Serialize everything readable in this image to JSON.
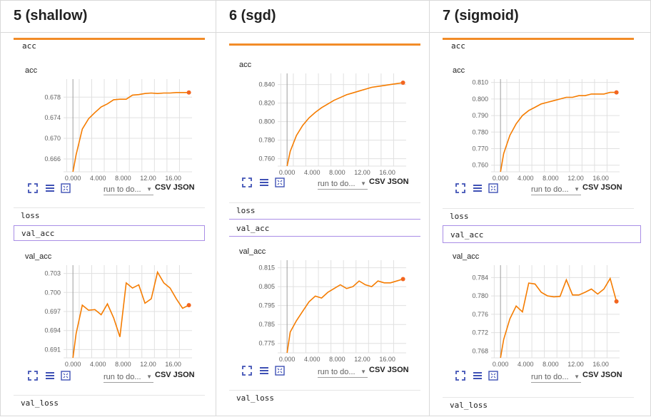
{
  "columns": [
    {
      "title": "5 (shallow)",
      "tags": [
        "acc",
        "loss",
        "val_acc",
        "val_loss"
      ],
      "acc": {
        "label": "acc",
        "y_ticks": [
          "0.678",
          "0.674",
          "0.670",
          "0.666"
        ],
        "x_ticks": [
          "0.000",
          "4.000",
          "8.000",
          "12.00",
          "16.00"
        ],
        "ylim": [
          0.6635,
          0.6815
        ],
        "xlim": [
          -1.5,
          19
        ],
        "x": [
          0,
          0.5,
          1.5,
          2.5,
          3.5,
          4.5,
          5.5,
          6.5,
          7.5,
          8.5,
          9.5,
          10.5,
          11.5,
          12.5,
          13.5,
          14.5,
          15.5,
          16.5,
          17.5,
          18.5
        ],
        "y": [
          0.6632,
          0.6668,
          0.6718,
          0.6738,
          0.675,
          0.6761,
          0.6767,
          0.6775,
          0.6776,
          0.6776,
          0.6784,
          0.6785,
          0.6787,
          0.6788,
          0.6787,
          0.6788,
          0.6788,
          0.6789,
          0.6789,
          0.6789
        ]
      },
      "val_acc": {
        "label": "val_acc",
        "y_ticks": [
          "0.703",
          "0.700",
          "0.697",
          "0.694",
          "0.691"
        ],
        "x_ticks": [
          "0.000",
          "4.000",
          "8.000",
          "12.00",
          "16.00"
        ],
        "ylim": [
          0.6897,
          0.7043
        ],
        "xlim": [
          -1.5,
          19
        ],
        "x": [
          0,
          0.5,
          1.5,
          2.5,
          3.5,
          4.5,
          5.5,
          6.5,
          7.5,
          8.5,
          9.5,
          10.5,
          11.5,
          12.5,
          13.5,
          14.5,
          15.5,
          16.5,
          17.5,
          18.5
        ],
        "y": [
          0.689,
          0.6935,
          0.698,
          0.6972,
          0.6973,
          0.6965,
          0.6982,
          0.696,
          0.693,
          0.7015,
          0.7007,
          0.7012,
          0.6983,
          0.699,
          0.7032,
          0.7015,
          0.7007,
          0.699,
          0.6975,
          0.698
        ]
      }
    },
    {
      "title": "6 (sgd)",
      "tags": [
        "acc",
        "loss",
        "val_acc",
        "val_loss"
      ],
      "acc": {
        "label": "acc",
        "y_ticks": [
          "0.840",
          "0.820",
          "0.800",
          "0.780",
          "0.760"
        ],
        "x_ticks": [
          "0.000",
          "4.000",
          "8.000",
          "12.00",
          "16.00"
        ],
        "ylim": [
          0.752,
          0.852
        ],
        "xlim": [
          -1.5,
          19
        ],
        "x": [
          0,
          0.5,
          1.5,
          2.5,
          3.5,
          4.5,
          5.5,
          6.5,
          7.5,
          8.5,
          9.5,
          10.5,
          11.5,
          12.5,
          13.5,
          14.5,
          15.5,
          16.5,
          17.5,
          18.5
        ],
        "y": [
          0.75,
          0.768,
          0.785,
          0.796,
          0.804,
          0.81,
          0.815,
          0.819,
          0.823,
          0.826,
          0.829,
          0.831,
          0.833,
          0.835,
          0.837,
          0.838,
          0.839,
          0.84,
          0.841,
          0.842
        ]
      },
      "val_acc": {
        "label": "val_acc",
        "y_ticks": [
          "0.815",
          "0.805",
          "0.795",
          "0.785",
          "0.775"
        ],
        "x_ticks": [
          "0.000",
          "4.000",
          "8.000",
          "12.00",
          "16.00"
        ],
        "ylim": [
          0.77,
          0.819
        ],
        "xlim": [
          -1.5,
          19
        ],
        "x": [
          0,
          0.5,
          1.5,
          2.5,
          3.5,
          4.5,
          5.5,
          6.5,
          7.5,
          8.5,
          9.5,
          10.5,
          11.5,
          12.5,
          13.5,
          14.5,
          15.5,
          16.5,
          17.5,
          18.5
        ],
        "y": [
          0.77,
          0.781,
          0.787,
          0.792,
          0.797,
          0.8,
          0.799,
          0.802,
          0.804,
          0.806,
          0.804,
          0.805,
          0.808,
          0.806,
          0.805,
          0.808,
          0.807,
          0.807,
          0.808,
          0.809
        ]
      }
    },
    {
      "title": "7 (sigmoid)",
      "tags": [
        "acc",
        "loss",
        "val_acc",
        "val_loss"
      ],
      "acc": {
        "label": "acc",
        "y_ticks": [
          "0.810",
          "0.800",
          "0.790",
          "0.780",
          "0.770",
          "0.760"
        ],
        "x_ticks": [
          "0.000",
          "4.000",
          "8.000",
          "12.00",
          "16.00"
        ],
        "ylim": [
          0.756,
          0.812
        ],
        "xlim": [
          -1.5,
          19
        ],
        "x": [
          0,
          0.5,
          1.5,
          2.5,
          3.5,
          4.5,
          5.5,
          6.5,
          7.5,
          8.5,
          9.5,
          10.5,
          11.5,
          12.5,
          13.5,
          14.5,
          15.5,
          16.5,
          17.5,
          18.5
        ],
        "y": [
          0.755,
          0.767,
          0.778,
          0.785,
          0.79,
          0.793,
          0.795,
          0.797,
          0.798,
          0.799,
          0.8,
          0.801,
          0.801,
          0.802,
          0.802,
          0.803,
          0.803,
          0.803,
          0.804,
          0.804
        ]
      },
      "val_acc": {
        "label": "val_acc",
        "y_ticks": [
          "0.784",
          "0.780",
          "0.776",
          "0.772",
          "0.768"
        ],
        "x_ticks": [
          "0.000",
          "4.000",
          "8.000",
          "12.00",
          "16.00"
        ],
        "ylim": [
          0.7665,
          0.7867
        ],
        "xlim": [
          -1.5,
          19
        ],
        "x": [
          0,
          0.5,
          1.5,
          2.5,
          3.5,
          4.5,
          5.5,
          6.5,
          7.5,
          8.5,
          9.5,
          10.5,
          11.5,
          12.5,
          13.5,
          14.5,
          15.5,
          16.5,
          17.5,
          18.5
        ],
        "y": [
          0.766,
          0.7705,
          0.775,
          0.7778,
          0.7765,
          0.7828,
          0.7826,
          0.7808,
          0.78,
          0.7798,
          0.7799,
          0.7835,
          0.7802,
          0.7802,
          0.7808,
          0.7815,
          0.7804,
          0.7815,
          0.7838,
          0.7788
        ]
      }
    }
  ],
  "controls": {
    "run_select": "run to do...",
    "download_label": "CSV JSON",
    "fit_icon": "fit-domain-icon",
    "log_icon": "toggle-log-scale-icon",
    "expand_icon": "expand-icon"
  },
  "colors": {
    "line": "#f57c00",
    "marker": "#f2651f",
    "icon": "#3f51b5",
    "selected_border": "#a98ee6",
    "grid": "#e0e0e0",
    "tick_text": "#616161"
  }
}
